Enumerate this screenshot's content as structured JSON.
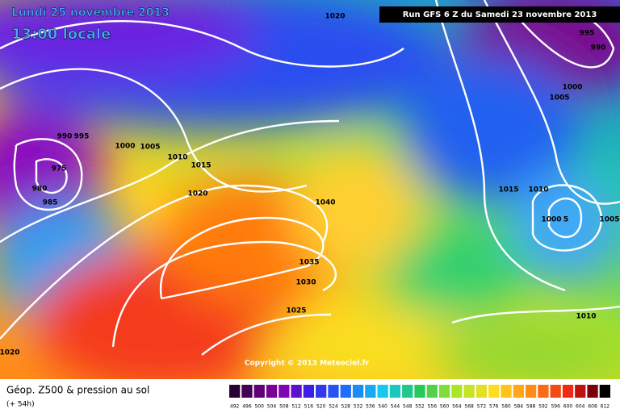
{
  "header": {
    "date": "Lundi 25 novembre 2013",
    "time": "13:00 locale",
    "run": "Run GFS 6 Z du Samedi 23 novembre 2013"
  },
  "isobar_labels": [
    "1020",
    "995",
    "990",
    "1000",
    "1005",
    "990",
    "995",
    "1000",
    "1005",
    "1010",
    "1015",
    "975",
    "980",
    "985",
    "1020",
    "1040",
    "1015",
    "1010",
    "1000",
    "5",
    "1005",
    "1035",
    "1030",
    "1025",
    "1010",
    "1020"
  ],
  "copyright": "Copyright © 2013 Meteociel.fr",
  "legend": {
    "title": "Géop. Z500 & pression au sol",
    "subtitle": "(+ 54h)",
    "scale": [
      492,
      496,
      500,
      504,
      508,
      512,
      516,
      520,
      524,
      528,
      532,
      536,
      540,
      544,
      548,
      552,
      556,
      560,
      564,
      568,
      572,
      576,
      580,
      584,
      588,
      592,
      596,
      600,
      604,
      608,
      612
    ]
  }
}
